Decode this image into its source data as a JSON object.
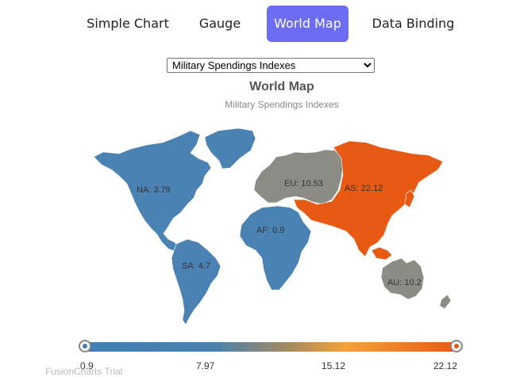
{
  "tabs": [
    {
      "label": "Simple Chart",
      "active": false
    },
    {
      "label": "Gauge",
      "active": false
    },
    {
      "label": "World Map",
      "active": true
    },
    {
      "label": "Data Binding",
      "active": false
    }
  ],
  "dropdown": {
    "selected": "Military Spendings Indexes",
    "options": [
      "Military Spendings Indexes"
    ]
  },
  "chart": {
    "title": "World Map",
    "subtitle": "Military Spendings Indexes"
  },
  "chart_data": {
    "type": "map",
    "title": "World Map",
    "subtitle": "Military Spendings Indexes",
    "regions": [
      {
        "id": "NA",
        "label": "NA: 3.79",
        "value": 3.79,
        "color": "#4a82b3"
      },
      {
        "id": "SA",
        "label": "SA: 4.7",
        "value": 4.7,
        "color": "#4a82b3"
      },
      {
        "id": "EU",
        "label": "EU: 10.53",
        "value": 10.53,
        "color": "#8b8d85"
      },
      {
        "id": "AF",
        "label": "AF: 0.9",
        "value": 0.9,
        "color": "#4a82b3"
      },
      {
        "id": "AS",
        "label": "AS: 22.12",
        "value": 22.12,
        "color": "#e85a13"
      },
      {
        "id": "AU",
        "label": "AU: 10.2",
        "value": 10.2,
        "color": "#8b8d85"
      }
    ],
    "legend": {
      "type": "gradient",
      "min": 0.9,
      "max": 22.12,
      "ticks": [
        "0.9",
        "7.97",
        "15.12",
        "22.12"
      ],
      "colors": [
        "#3f7fb4",
        "#f3a33a",
        "#e85a13"
      ]
    }
  },
  "watermark": "FusionCharts Trial"
}
